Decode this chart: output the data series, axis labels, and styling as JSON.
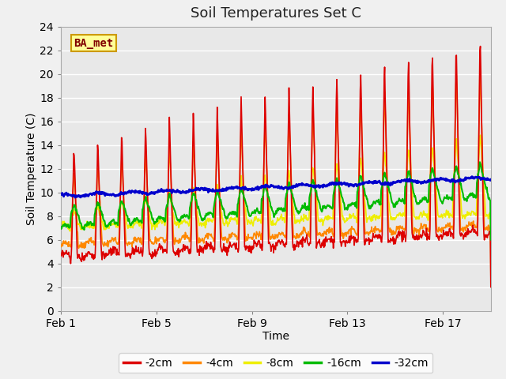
{
  "title": "Soil Temperatures Set C",
  "xlabel": "Time",
  "ylabel": "Soil Temperature (C)",
  "ylim": [
    0,
    24
  ],
  "yticks": [
    0,
    2,
    4,
    6,
    8,
    10,
    12,
    14,
    16,
    18,
    20,
    22,
    24
  ],
  "xtick_labels": [
    "Feb 1",
    "Feb 5",
    "Feb 9",
    "Feb 13",
    "Feb 17"
  ],
  "xtick_positions": [
    0,
    4,
    8,
    12,
    16
  ],
  "plot_bg_color": "#e8e8e8",
  "fig_bg_color": "#f0f0f0",
  "line_colors": {
    "-2cm": "#dd0000",
    "-4cm": "#ff8800",
    "-8cm": "#eeee00",
    "-16cm": "#00bb00",
    "-32cm": "#0000cc"
  },
  "legend_label": "BA_met",
  "legend_box_color": "#ffff99",
  "legend_box_edge": "#cc9900",
  "total_days": 18,
  "n_cycles": 18,
  "points_per_day": 48
}
